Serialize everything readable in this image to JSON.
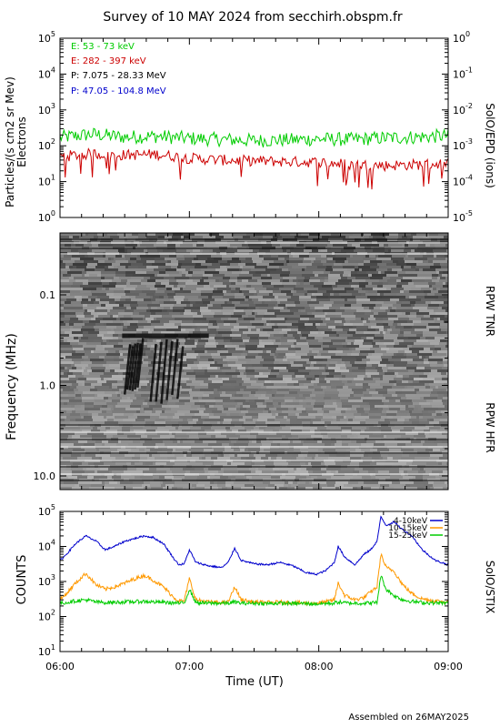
{
  "page": {
    "title": "Survey of 10 MAY 2024 from secchirh.obspm.fr",
    "footer": "Assembled on 26MAY2025"
  },
  "chart_data": [
    {
      "type": "line",
      "panel": "solo-epd",
      "ylabel_left": "Particles/(s cm2 sr Mev)",
      "ylabel_left_sub": "Electrons",
      "ylabel_right": "SolO/EPD (ions)",
      "y_scale": "log",
      "ylim_left": [
        1,
        100000
      ],
      "ylim_right": [
        1e-05,
        1
      ],
      "yticks_left": [
        "10^0",
        "10^1",
        "10^2",
        "10^3",
        "10^4",
        "10^5"
      ],
      "yticks_right": [
        "10^-5",
        "10^-4",
        "10^-3",
        "10^-2",
        "10^-1",
        "10^0"
      ],
      "xlim_hours": [
        6,
        9
      ],
      "legend_placement": "top-left",
      "series": [
        {
          "name": "E: 53 - 73 keV",
          "color": "#00cc00",
          "plotted": true,
          "x": [
            6.0,
            6.25,
            6.5,
            6.75,
            7.0,
            7.25,
            7.5,
            7.75,
            8.0,
            8.25,
            8.5,
            8.75,
            9.0
          ],
          "y": [
            170,
            210,
            175,
            185,
            160,
            150,
            140,
            145,
            155,
            150,
            165,
            175,
            190
          ]
        },
        {
          "name": "E: 282 - 397 keV",
          "color": "#cc0000",
          "plotted": true,
          "x": [
            6.0,
            6.25,
            6.5,
            6.75,
            7.0,
            7.25,
            7.5,
            7.75,
            8.0,
            8.25,
            8.5,
            8.75,
            9.0
          ],
          "y": [
            50,
            60,
            55,
            58,
            45,
            40,
            38,
            36,
            35,
            30,
            28,
            30,
            32
          ]
        },
        {
          "name": "P: 7.075 - 28.33 MeV",
          "color": "#000000",
          "plotted": false
        },
        {
          "name": "P: 47.05 - 104.8 MeV",
          "color": "#0000cc",
          "plotted": false
        }
      ]
    },
    {
      "type": "heatmap",
      "panel": "rpw-spectrogram",
      "ylabel": "Frequency (MHz)",
      "y_scale": "log",
      "y_inverted": true,
      "ylim": [
        10.0,
        0.1
      ],
      "yticks": [
        "0.1",
        "1.0",
        "10.0"
      ],
      "xlim_hours": [
        6,
        9
      ],
      "label_upper": "RPW TNR",
      "label_lower": "RPW HFR",
      "bursts": [
        {
          "x_start": 6.48,
          "x_end": 7.15,
          "f_mhz": 0.28
        },
        {
          "x_start": 6.5,
          "x_end": 6.62,
          "f_top_mhz": 0.3,
          "f_bottom_mhz": 1.3
        },
        {
          "x_start": 6.7,
          "x_end": 6.95,
          "f_top_mhz": 0.3,
          "f_bottom_mhz": 1.6
        }
      ]
    },
    {
      "type": "line",
      "panel": "stix",
      "ylabel": "COUNTS",
      "ylabel_right": "SolO/STIX",
      "y_scale": "log",
      "ylim": [
        10,
        100000
      ],
      "yticks": [
        "10^1",
        "10^2",
        "10^3",
        "10^4",
        "10^5"
      ],
      "xlabel": "Time (UT)",
      "xticks": [
        "06:00",
        "07:00",
        "08:00",
        "09:00"
      ],
      "xlim_hours": [
        6,
        9
      ],
      "legend_placement": "top-right",
      "series": [
        {
          "name": "4-10keV",
          "color": "#0000cc",
          "x": [
            6.0,
            6.05,
            6.12,
            6.2,
            6.28,
            6.35,
            6.42,
            6.5,
            6.58,
            6.65,
            6.72,
            6.8,
            6.88,
            6.92,
            6.96,
            7.0,
            7.05,
            7.15,
            7.25,
            7.3,
            7.35,
            7.4,
            7.5,
            7.6,
            7.7,
            7.8,
            7.9,
            7.98,
            8.05,
            8.12,
            8.15,
            8.2,
            8.28,
            8.35,
            8.4,
            8.45,
            8.48,
            8.52,
            8.58,
            8.65,
            8.72,
            8.8,
            8.9,
            9.0
          ],
          "y": [
            4000,
            6000,
            12000,
            20000,
            14000,
            8000,
            10000,
            14000,
            17000,
            20000,
            18000,
            12000,
            4500,
            3000,
            3200,
            8000,
            3500,
            2800,
            2500,
            3500,
            9000,
            4000,
            3200,
            3000,
            3500,
            2800,
            1800,
            1600,
            2000,
            3500,
            10000,
            5000,
            3000,
            6000,
            8000,
            14000,
            70000,
            40000,
            50000,
            30000,
            20000,
            8000,
            4000,
            3000
          ]
        },
        {
          "name": "10-15keV",
          "color": "#ff9900",
          "x": [
            6.0,
            6.05,
            6.12,
            6.2,
            6.28,
            6.35,
            6.42,
            6.5,
            6.58,
            6.65,
            6.72,
            6.8,
            6.88,
            6.92,
            6.96,
            7.0,
            7.05,
            7.15,
            7.25,
            7.3,
            7.35,
            7.4,
            7.5,
            7.6,
            7.7,
            7.8,
            7.9,
            7.98,
            8.05,
            8.12,
            8.15,
            8.2,
            8.28,
            8.35,
            8.4,
            8.45,
            8.48,
            8.52,
            8.58,
            8.65,
            8.72,
            8.8,
            8.9,
            9.0
          ],
          "y": [
            300,
            450,
            900,
            1700,
            800,
            600,
            700,
            900,
            1200,
            1500,
            1100,
            700,
            350,
            280,
            280,
            1200,
            300,
            260,
            250,
            260,
            700,
            300,
            260,
            250,
            260,
            250,
            240,
            240,
            260,
            300,
            900,
            400,
            300,
            350,
            500,
            700,
            6000,
            2500,
            2000,
            800,
            450,
            320,
            280,
            260
          ]
        },
        {
          "name": "15-25keV",
          "color": "#00cc00",
          "x": [
            6.0,
            6.05,
            6.12,
            6.2,
            6.28,
            6.35,
            6.42,
            6.5,
            6.58,
            6.65,
            6.72,
            6.8,
            6.88,
            6.92,
            6.96,
            7.0,
            7.05,
            7.15,
            7.25,
            7.3,
            7.35,
            7.4,
            7.5,
            7.6,
            7.7,
            7.8,
            7.9,
            7.98,
            8.05,
            8.12,
            8.15,
            8.2,
            8.28,
            8.35,
            8.4,
            8.45,
            8.48,
            8.52,
            8.58,
            8.65,
            8.72,
            8.8,
            8.9,
            9.0
          ],
          "y": [
            240,
            250,
            280,
            300,
            260,
            250,
            255,
            260,
            265,
            270,
            260,
            255,
            245,
            240,
            240,
            600,
            250,
            240,
            240,
            240,
            260,
            240,
            240,
            235,
            240,
            235,
            235,
            230,
            235,
            240,
            260,
            245,
            240,
            240,
            245,
            250,
            1500,
            600,
            400,
            300,
            270,
            250,
            245,
            240
          ]
        }
      ]
    }
  ]
}
